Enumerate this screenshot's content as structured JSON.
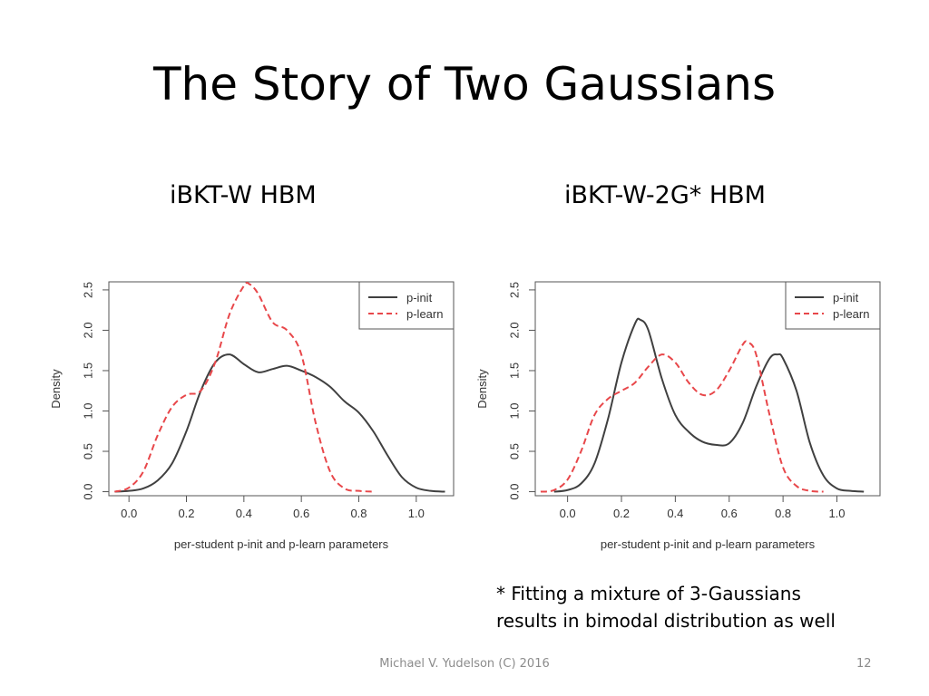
{
  "slide": {
    "title": "The Story of Two Gaussians",
    "subtitle_left": "iBKT-W HBM",
    "subtitle_right": "iBKT-W-2G* HBM",
    "footnote_line1": "* Fitting a mixture of 3-Gaussians",
    "footnote_line2": "results in bimodal distribution as well",
    "footer": "Michael V. Yudelson (C) 2016",
    "page_number": "12"
  },
  "chart_data": [
    {
      "type": "line",
      "xlabel": "per-student p-init and p-learn parameters",
      "ylabel": "Density",
      "xlim": [
        -0.07,
        1.13
      ],
      "ylim": [
        -0.05,
        2.6
      ],
      "xticks": [
        "0.0",
        "0.2",
        "0.4",
        "0.6",
        "0.8",
        "1.0"
      ],
      "yticks": [
        "0.0",
        "0.5",
        "1.0",
        "1.5",
        "2.0",
        "2.5"
      ],
      "legend_position": "top-right",
      "series": [
        {
          "name": "p-init",
          "color": "#404040",
          "dash": "solid",
          "x": [
            -0.05,
            0.0,
            0.05,
            0.1,
            0.15,
            0.2,
            0.25,
            0.3,
            0.35,
            0.4,
            0.45,
            0.5,
            0.55,
            0.6,
            0.65,
            0.7,
            0.75,
            0.8,
            0.85,
            0.9,
            0.95,
            1.0,
            1.05,
            1.1
          ],
          "y": [
            0.0,
            0.01,
            0.04,
            0.14,
            0.35,
            0.75,
            1.25,
            1.6,
            1.7,
            1.58,
            1.48,
            1.52,
            1.56,
            1.5,
            1.42,
            1.3,
            1.12,
            0.98,
            0.75,
            0.45,
            0.18,
            0.05,
            0.01,
            0.0
          ]
        },
        {
          "name": "p-learn",
          "color": "#e8474a",
          "dash": "dashed",
          "x": [
            -0.05,
            0.0,
            0.05,
            0.1,
            0.15,
            0.2,
            0.25,
            0.3,
            0.35,
            0.4,
            0.42,
            0.45,
            0.5,
            0.55,
            0.6,
            0.65,
            0.7,
            0.75,
            0.8,
            0.85
          ],
          "y": [
            0.0,
            0.05,
            0.25,
            0.7,
            1.05,
            1.2,
            1.25,
            1.6,
            2.2,
            2.55,
            2.57,
            2.45,
            2.1,
            2.0,
            1.7,
            0.85,
            0.25,
            0.04,
            0.01,
            0.0
          ]
        }
      ]
    },
    {
      "type": "line",
      "xlabel": "per-student p-init and p-learn parameters",
      "ylabel": "Density",
      "xlim": [
        -0.12,
        1.16
      ],
      "ylim": [
        -0.05,
        2.6
      ],
      "xticks": [
        "0.0",
        "0.2",
        "0.4",
        "0.6",
        "0.8",
        "1.0"
      ],
      "yticks": [
        "0.0",
        "0.5",
        "1.0",
        "1.5",
        "2.0",
        "2.5"
      ],
      "legend_position": "top-right",
      "series": [
        {
          "name": "p-init",
          "color": "#404040",
          "dash": "solid",
          "x": [
            -0.05,
            0.0,
            0.05,
            0.1,
            0.15,
            0.2,
            0.25,
            0.27,
            0.3,
            0.35,
            0.4,
            0.45,
            0.5,
            0.55,
            0.6,
            0.65,
            0.7,
            0.75,
            0.78,
            0.8,
            0.85,
            0.9,
            0.95,
            1.0,
            1.05,
            1.1
          ],
          "y": [
            0.0,
            0.02,
            0.1,
            0.35,
            0.9,
            1.6,
            2.08,
            2.13,
            2.0,
            1.4,
            0.95,
            0.74,
            0.62,
            0.58,
            0.6,
            0.85,
            1.3,
            1.65,
            1.7,
            1.65,
            1.25,
            0.6,
            0.2,
            0.04,
            0.01,
            0.0
          ]
        },
        {
          "name": "p-learn",
          "color": "#e8474a",
          "dash": "dashed",
          "x": [
            -0.1,
            -0.05,
            0.0,
            0.05,
            0.1,
            0.15,
            0.2,
            0.25,
            0.3,
            0.35,
            0.4,
            0.45,
            0.5,
            0.55,
            0.6,
            0.65,
            0.67,
            0.7,
            0.75,
            0.8,
            0.85,
            0.9,
            0.95
          ],
          "y": [
            0.0,
            0.02,
            0.15,
            0.5,
            0.95,
            1.15,
            1.25,
            1.35,
            1.55,
            1.7,
            1.6,
            1.35,
            1.2,
            1.25,
            1.5,
            1.82,
            1.85,
            1.7,
            0.95,
            0.3,
            0.07,
            0.01,
            0.0
          ]
        }
      ]
    }
  ]
}
